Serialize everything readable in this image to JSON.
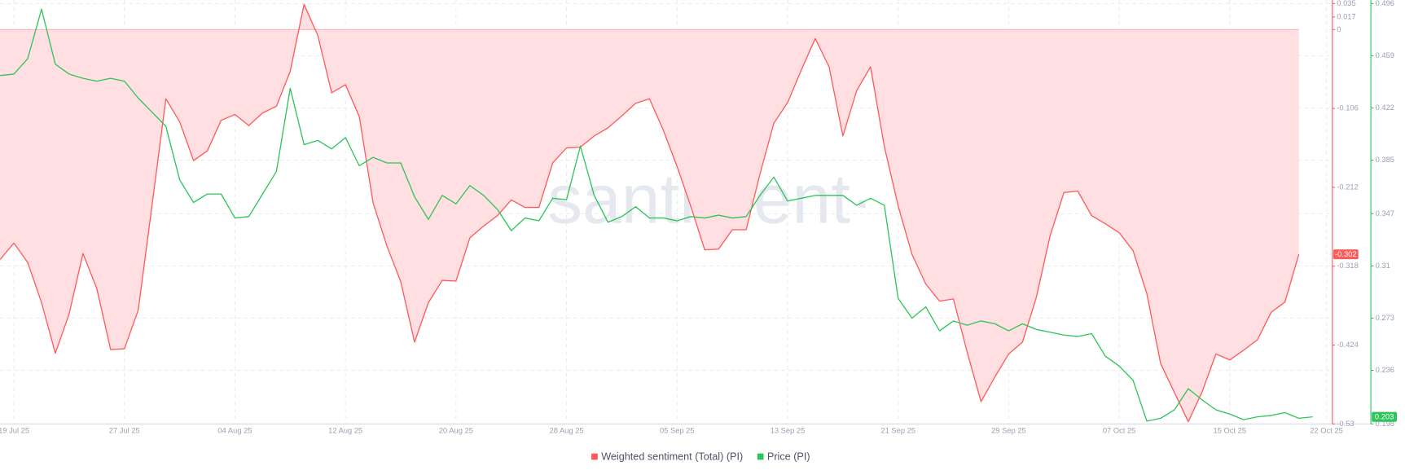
{
  "chart_data": {
    "type": "line",
    "watermark": "·santiment·",
    "x": [
      "2025-07-18",
      "2025-07-19",
      "2025-07-20",
      "2025-07-21",
      "2025-07-22",
      "2025-07-23",
      "2025-07-24",
      "2025-07-25",
      "2025-07-26",
      "2025-07-27",
      "2025-07-28",
      "2025-07-29",
      "2025-07-30",
      "2025-07-31",
      "2025-08-01",
      "2025-08-02",
      "2025-08-03",
      "2025-08-04",
      "2025-08-05",
      "2025-08-06",
      "2025-08-07",
      "2025-08-08",
      "2025-08-09",
      "2025-08-10",
      "2025-08-11",
      "2025-08-12",
      "2025-08-13",
      "2025-08-14",
      "2025-08-15",
      "2025-08-16",
      "2025-08-17",
      "2025-08-18",
      "2025-08-19",
      "2025-08-20",
      "2025-08-21",
      "2025-08-22",
      "2025-08-23",
      "2025-08-24",
      "2025-08-25",
      "2025-08-26",
      "2025-08-27",
      "2025-08-28",
      "2025-08-29",
      "2025-08-30",
      "2025-08-31",
      "2025-09-01",
      "2025-09-02",
      "2025-09-03",
      "2025-09-04",
      "2025-09-05",
      "2025-09-06",
      "2025-09-07",
      "2025-09-08",
      "2025-09-09",
      "2025-09-10",
      "2025-09-11",
      "2025-09-12",
      "2025-09-13",
      "2025-09-14",
      "2025-09-15",
      "2025-09-16",
      "2025-09-17",
      "2025-09-18",
      "2025-09-19",
      "2025-09-20",
      "2025-09-21",
      "2025-09-22",
      "2025-09-23",
      "2025-09-24",
      "2025-09-25",
      "2025-09-26",
      "2025-09-27",
      "2025-09-28",
      "2025-09-29",
      "2025-09-30",
      "2025-10-01",
      "2025-10-02",
      "2025-10-03",
      "2025-10-04",
      "2025-10-05",
      "2025-10-06",
      "2025-10-07",
      "2025-10-08",
      "2025-10-09",
      "2025-10-10",
      "2025-10-11",
      "2025-10-12",
      "2025-10-13",
      "2025-10-14",
      "2025-10-15",
      "2025-10-16",
      "2025-10-17",
      "2025-10-18",
      "2025-10-19",
      "2025-10-20",
      "2025-10-21"
    ],
    "series": [
      {
        "name": "Weighted sentiment (Total) (PI)",
        "color": "#ff5a5a",
        "fill": "#ffdfe1",
        "values": [
          -0.309,
          -0.287,
          -0.313,
          -0.367,
          -0.435,
          -0.382,
          -0.301,
          -0.348,
          -0.43,
          -0.429,
          -0.377,
          -0.236,
          -0.093,
          -0.124,
          -0.176,
          -0.163,
          -0.122,
          -0.114,
          -0.129,
          -0.112,
          -0.103,
          -0.056,
          0.034,
          -0.008,
          -0.085,
          -0.074,
          -0.117,
          -0.233,
          -0.291,
          -0.339,
          -0.42,
          -0.367,
          -0.337,
          -0.338,
          -0.28,
          -0.264,
          -0.25,
          -0.229,
          -0.239,
          -0.239,
          -0.179,
          -0.159,
          -0.158,
          -0.143,
          -0.132,
          -0.116,
          -0.099,
          -0.093,
          -0.135,
          -0.184,
          -0.238,
          -0.296,
          -0.295,
          -0.269,
          -0.269,
          -0.194,
          -0.126,
          -0.098,
          -0.054,
          -0.012,
          -0.05,
          -0.143,
          -0.082,
          -0.05,
          -0.157,
          -0.237,
          -0.302,
          -0.342,
          -0.365,
          -0.362,
          -0.434,
          -0.5,
          -0.467,
          -0.436,
          -0.42,
          -0.36,
          -0.277,
          -0.219,
          -0.217,
          -0.25,
          -0.261,
          -0.273,
          -0.297,
          -0.355,
          -0.449,
          -0.488,
          -0.527,
          -0.487,
          -0.436,
          -0.444,
          -0.431,
          -0.417,
          -0.38,
          -0.366,
          -0.302,
          null
        ]
      },
      {
        "name": "Price (PI)",
        "color": "#2ec45a",
        "axis": "y2",
        "values": [
          0.445,
          0.446,
          0.457,
          0.492,
          0.453,
          0.446,
          0.443,
          0.441,
          0.443,
          0.441,
          0.429,
          0.419,
          0.409,
          0.371,
          0.355,
          0.361,
          0.361,
          0.344,
          0.345,
          0.361,
          0.377,
          0.436,
          0.396,
          0.399,
          0.393,
          0.401,
          0.381,
          0.387,
          0.383,
          0.383,
          0.359,
          0.343,
          0.36,
          0.354,
          0.367,
          0.36,
          0.35,
          0.335,
          0.344,
          0.342,
          0.358,
          0.357,
          0.395,
          0.36,
          0.341,
          0.345,
          0.352,
          0.344,
          0.344,
          0.342,
          0.345,
          0.344,
          0.346,
          0.344,
          0.345,
          0.36,
          0.373,
          0.356,
          0.358,
          0.36,
          0.36,
          0.36,
          0.353,
          0.358,
          0.353,
          0.287,
          0.273,
          0.281,
          0.264,
          0.271,
          0.268,
          0.271,
          0.269,
          0.264,
          0.269,
          0.265,
          0.263,
          0.261,
          0.26,
          0.262,
          0.246,
          0.239,
          0.229,
          0.2,
          0.202,
          0.208,
          0.223,
          0.215,
          0.208,
          0.205,
          0.201,
          0.203,
          0.204,
          0.206,
          0.202,
          0.203
        ]
      }
    ],
    "ylim": [
      -0.53,
      0.035
    ],
    "yticks": [
      0.035,
      0.017,
      0,
      -0.106,
      -0.212,
      -0.318,
      -0.424,
      -0.53
    ],
    "y2lim": [
      0.198,
      0.496
    ],
    "y2ticks": [
      0.496,
      0.459,
      0.422,
      0.385,
      0.347,
      0.31,
      0.273,
      0.236,
      0.198
    ],
    "xticks": [
      {
        "value": "2025-07-19",
        "label": "19 Jul 25"
      },
      {
        "value": "2025-07-27",
        "label": "27 Jul 25"
      },
      {
        "value": "2025-08-04",
        "label": "04 Aug 25"
      },
      {
        "value": "2025-08-12",
        "label": "12 Aug 25"
      },
      {
        "value": "2025-08-20",
        "label": "20 Aug 25"
      },
      {
        "value": "2025-08-28",
        "label": "28 Aug 25"
      },
      {
        "value": "2025-09-05",
        "label": "05 Sep 25"
      },
      {
        "value": "2025-09-13",
        "label": "13 Sep 25"
      },
      {
        "value": "2025-09-21",
        "label": "21 Sep 25"
      },
      {
        "value": "2025-09-29",
        "label": "29 Sep 25"
      },
      {
        "value": "2025-10-07",
        "label": "07 Oct 25"
      },
      {
        "value": "2025-10-15",
        "label": "15 Oct 25"
      },
      {
        "value": "2025-10-22",
        "label": "22 Oct 25"
      }
    ],
    "grid": true,
    "legend": "bottom"
  }
}
